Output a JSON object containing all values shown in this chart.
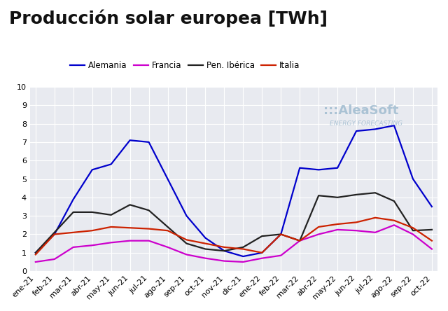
{
  "title": "Producción solar europea [TWh]",
  "background_color": "#ffffff",
  "plot_background": "#e8eaf0",
  "grid_color": "#ffffff",
  "x_labels": [
    "ene-21",
    "feb-21",
    "mar-21",
    "abr-21",
    "may-21",
    "jun-21",
    "jul-21",
    "ago-21",
    "sep-21",
    "oct-21",
    "nov-21",
    "dic-21",
    "ene-22",
    "feb-22",
    "mar-22",
    "abr-22",
    "may-22",
    "jun-22",
    "jul-22",
    "ago-22",
    "sep-22",
    "oct-22"
  ],
  "series": {
    "Alemania": {
      "color": "#0000cc",
      "values": [
        1.0,
        2.0,
        3.9,
        5.5,
        5.8,
        7.1,
        7.0,
        5.0,
        3.0,
        1.8,
        1.1,
        0.8,
        1.0,
        2.0,
        5.6,
        5.5,
        5.6,
        7.6,
        7.7,
        7.9,
        5.0,
        3.5
      ]
    },
    "Francia": {
      "color": "#cc00cc",
      "values": [
        0.5,
        0.65,
        1.3,
        1.4,
        1.55,
        1.65,
        1.65,
        1.3,
        0.9,
        0.7,
        0.55,
        0.5,
        0.7,
        0.85,
        1.65,
        2.0,
        2.25,
        2.2,
        2.1,
        2.5,
        2.0,
        1.2
      ]
    },
    "Pen. Ibérica": {
      "color": "#222222",
      "values": [
        1.0,
        2.1,
        3.2,
        3.2,
        3.05,
        3.6,
        3.3,
        2.4,
        1.5,
        1.2,
        1.1,
        1.3,
        1.9,
        2.0,
        1.65,
        4.1,
        4.0,
        4.15,
        4.25,
        3.8,
        2.2,
        2.25
      ]
    },
    "Italia": {
      "color": "#cc2200",
      "values": [
        0.9,
        2.0,
        2.1,
        2.2,
        2.4,
        2.35,
        2.3,
        2.2,
        1.7,
        1.5,
        1.3,
        1.2,
        1.0,
        2.0,
        1.65,
        2.4,
        2.55,
        2.65,
        2.9,
        2.75,
        2.35,
        1.65
      ]
    }
  },
  "ylim": [
    0,
    10
  ],
  "yticks": [
    0,
    1,
    2,
    3,
    4,
    5,
    6,
    7,
    8,
    9,
    10
  ],
  "legend_labels": [
    "Alemania",
    "Francia",
    "Pen. Ibérica",
    "Italia"
  ],
  "watermark_text": ":::AleaSoft",
  "watermark_sub": "ENERGY FORECASTING",
  "title_fontsize": 18,
  "label_fontsize": 8
}
